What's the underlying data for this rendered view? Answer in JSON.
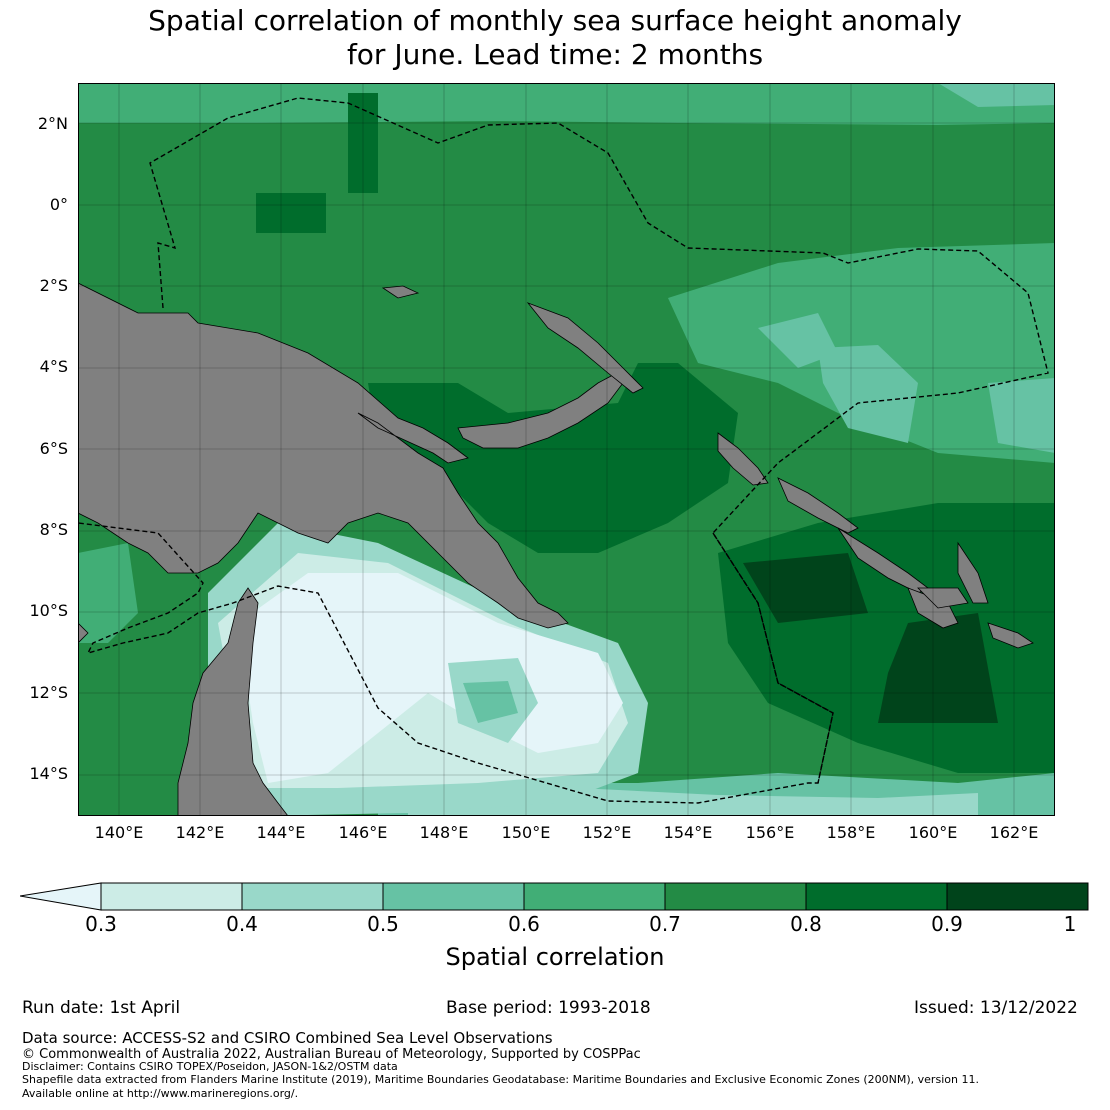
{
  "title": {
    "line1": "Spatial correlation of monthly sea surface height anomaly",
    "line2": "for June. Lead time: 2 months"
  },
  "map": {
    "lat_labels": [
      "2°N",
      "0°",
      "2°S",
      "4°S",
      "6°S",
      "8°S",
      "10°S",
      "12°S",
      "14°S"
    ],
    "lon_labels": [
      "140°E",
      "142°E",
      "144°E",
      "146°E",
      "148°E",
      "150°E",
      "152°E",
      "154°E",
      "156°E",
      "158°E",
      "160°E",
      "162°E"
    ],
    "land_color": "#808080",
    "boundary_style": "dashed"
  },
  "colorbar": {
    "ticks": [
      "0.3",
      "0.4",
      "0.5",
      "0.6",
      "0.7",
      "0.8",
      "0.9",
      "1"
    ],
    "label": "Spatial correlation",
    "extend": "min",
    "colors": [
      "#e5f5f9",
      "#ccece6",
      "#99d8c9",
      "#66c2a4",
      "#41ae76",
      "#238b45",
      "#006d2c",
      "#00441b"
    ]
  },
  "footer": {
    "run_date": "Run date: 1st April",
    "base_period": "Base period: 1993-2018",
    "issued": "Issued: 13/12/2022",
    "data_source": "Data source: ACCESS-S2 and CSIRO Combined Sea Level Observations",
    "copyright": "© Commonwealth of Australia 2022, Australian Bureau of Meteorology, Supported by COSPPac",
    "disclaimer": "Disclaimer: Contains CSIRO TOPEX/Poseidon, JASON-1&2/OSTM data",
    "shapefile": "Shapefile data extracted from Flanders Marine Institute (2019), Maritime Boundaries Geodatabase: Maritime Boundaries and Exclusive Economic Zones (200NM), version 11.",
    "available": "Available online at http://www.marineregions.org/."
  }
}
